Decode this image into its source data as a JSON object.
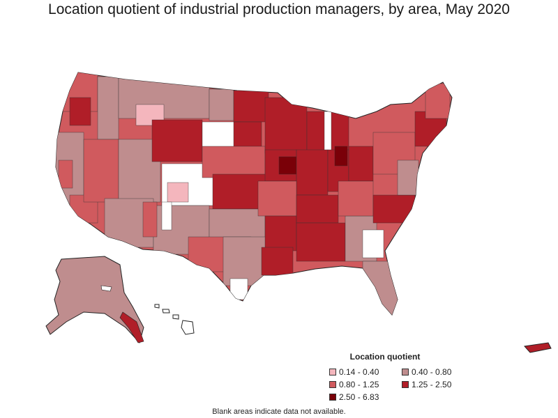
{
  "title": "Location quotient of industrial production managers, by area, May 2020",
  "legend": {
    "title": "Location quotient",
    "items": [
      {
        "label": "0.14 - 0.40",
        "color": "#f4b6bd"
      },
      {
        "label": "0.40 - 0.80",
        "color": "#bf8d8e"
      },
      {
        "label": "0.80 - 1.25",
        "color": "#d05a5e"
      },
      {
        "label": "1.25 - 2.50",
        "color": "#b01e28"
      },
      {
        "label": "2.50 - 6.83",
        "color": "#7a0008"
      }
    ]
  },
  "note": "Blank areas indicate data not available.",
  "colors": {
    "outline": "#222222",
    "blank": "#ffffff"
  }
}
